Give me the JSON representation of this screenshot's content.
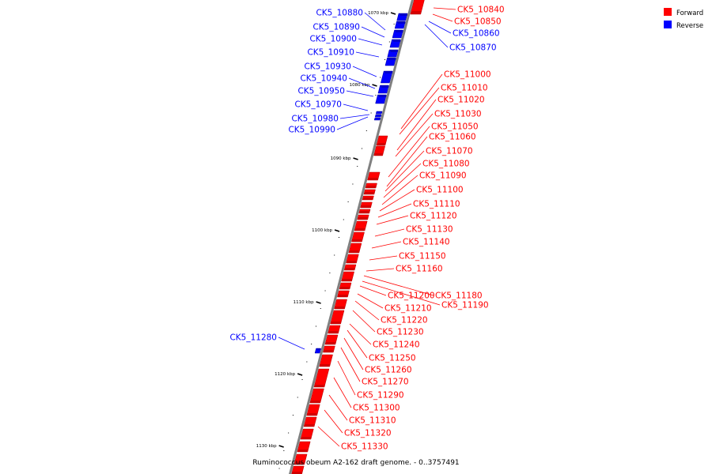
{
  "caption": "Ruminococcus obeum A2-162 draft genome. - 0..3757491",
  "legend": [
    {
      "label": "Forward",
      "color": "#ff0000"
    },
    {
      "label": "Reverse",
      "color": "#0000ff"
    }
  ],
  "colors": {
    "forward": "#ff0000",
    "reverse": "#0000ff",
    "backbone": "#808080"
  },
  "ticks": [
    "1070 kbp",
    "1080 kbp",
    "1090 kbp",
    "1100 kbp",
    "1110 kbp",
    "1120 kbp",
    "1130 kbp"
  ],
  "genes": [
    {
      "id": "CK5_10840",
      "strand": "forward"
    },
    {
      "id": "CK5_10850",
      "strand": "forward"
    },
    {
      "id": "CK5_10860",
      "strand": "reverse"
    },
    {
      "id": "CK5_10870",
      "strand": "reverse"
    },
    {
      "id": "CK5_10880",
      "strand": "reverse"
    },
    {
      "id": "CK5_10890",
      "strand": "reverse"
    },
    {
      "id": "CK5_10900",
      "strand": "reverse"
    },
    {
      "id": "CK5_10910",
      "strand": "reverse"
    },
    {
      "id": "CK5_10930",
      "strand": "reverse"
    },
    {
      "id": "CK5_10940",
      "strand": "reverse"
    },
    {
      "id": "CK5_10950",
      "strand": "reverse"
    },
    {
      "id": "CK5_10970",
      "strand": "reverse"
    },
    {
      "id": "CK5_10980",
      "strand": "reverse"
    },
    {
      "id": "CK5_10990",
      "strand": "reverse"
    },
    {
      "id": "CK5_11000",
      "strand": "forward"
    },
    {
      "id": "CK5_11010",
      "strand": "forward"
    },
    {
      "id": "CK5_11020",
      "strand": "forward"
    },
    {
      "id": "CK5_11030",
      "strand": "forward"
    },
    {
      "id": "CK5_11050",
      "strand": "forward"
    },
    {
      "id": "CK5_11060",
      "strand": "forward"
    },
    {
      "id": "CK5_11070",
      "strand": "forward"
    },
    {
      "id": "CK5_11080",
      "strand": "forward"
    },
    {
      "id": "CK5_11090",
      "strand": "forward"
    },
    {
      "id": "CK5_11100",
      "strand": "forward"
    },
    {
      "id": "CK5_11110",
      "strand": "forward"
    },
    {
      "id": "CK5_11120",
      "strand": "forward"
    },
    {
      "id": "CK5_11130",
      "strand": "forward"
    },
    {
      "id": "CK5_11140",
      "strand": "forward"
    },
    {
      "id": "CK5_11150",
      "strand": "forward"
    },
    {
      "id": "CK5_11160",
      "strand": "forward"
    },
    {
      "id": "CK5_11180",
      "strand": "forward"
    },
    {
      "id": "CK5_11190",
      "strand": "forward"
    },
    {
      "id": "CK5_11200",
      "strand": "forward"
    },
    {
      "id": "CK5_11210",
      "strand": "forward"
    },
    {
      "id": "CK5_11220",
      "strand": "forward"
    },
    {
      "id": "CK5_11230",
      "strand": "forward"
    },
    {
      "id": "CK5_11240",
      "strand": "forward"
    },
    {
      "id": "CK5_11250",
      "strand": "forward"
    },
    {
      "id": "CK5_11260",
      "strand": "forward"
    },
    {
      "id": "CK5_11270",
      "strand": "forward"
    },
    {
      "id": "CK5_11280",
      "strand": "reverse"
    },
    {
      "id": "CK5_11290",
      "strand": "forward"
    },
    {
      "id": "CK5_11300",
      "strand": "forward"
    },
    {
      "id": "CK5_11310",
      "strand": "forward"
    },
    {
      "id": "CK5_11320",
      "strand": "forward"
    },
    {
      "id": "CK5_11330",
      "strand": "forward"
    }
  ]
}
